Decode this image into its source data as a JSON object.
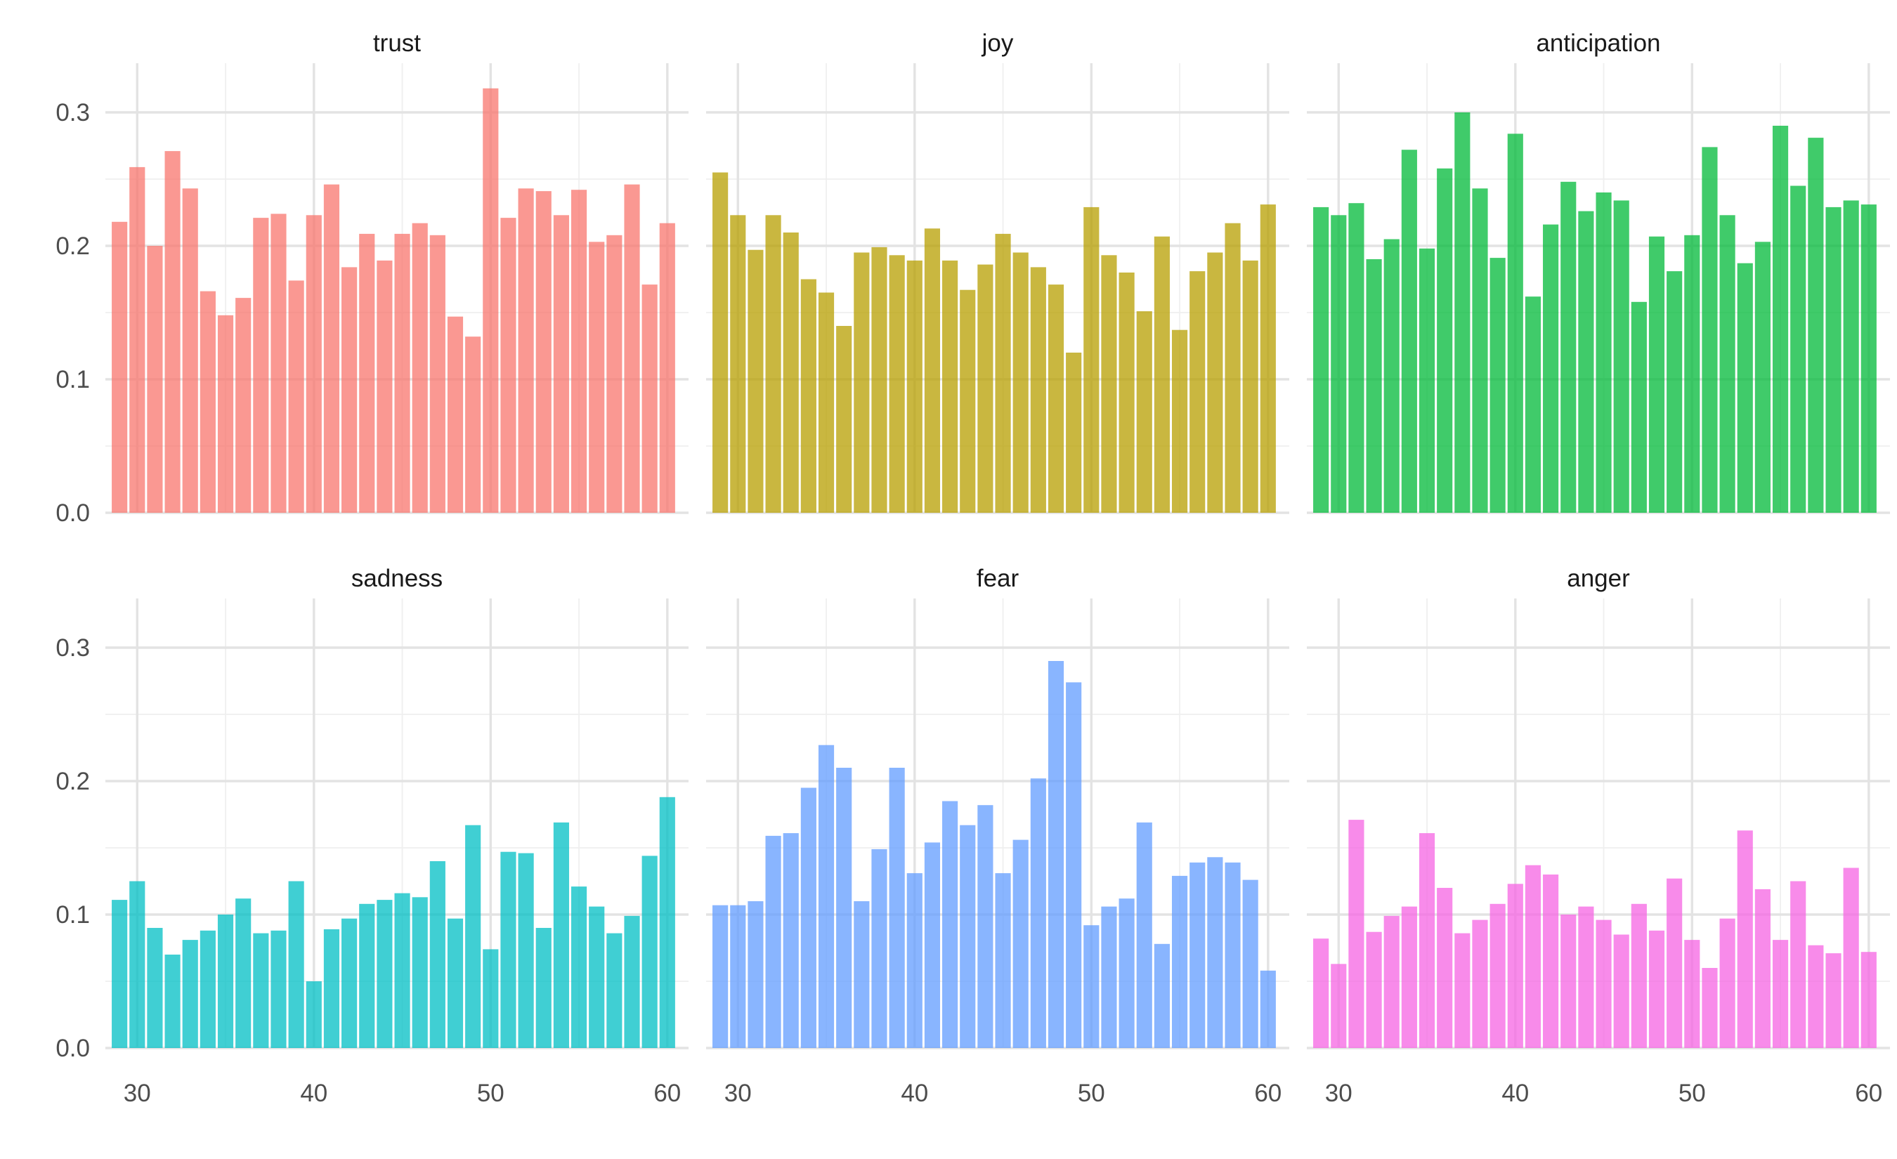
{
  "chart_data": {
    "type": "bar",
    "layout": "facet grid, 2 rows x 3 columns, shared axes",
    "x": [
      29,
      30,
      31,
      32,
      33,
      34,
      35,
      36,
      37,
      38,
      39,
      40,
      41,
      42,
      43,
      44,
      45,
      46,
      47,
      48,
      49,
      50,
      51,
      52,
      53,
      54,
      55,
      56,
      57,
      58,
      59,
      60
    ],
    "xlim": [
      28.2,
      61.2
    ],
    "xticks": [
      30,
      40,
      50,
      60
    ],
    "xtick_labels": [
      "30",
      "40",
      "50",
      "60"
    ],
    "ylim": [
      0,
      0.33
    ],
    "yticks": [
      0,
      0.1,
      0.2,
      0.3
    ],
    "ytick_labels": [
      "0.0",
      "0.1",
      "0.2",
      "0.3"
    ],
    "grid": true,
    "legend": "none",
    "series": [
      {
        "name": "trust",
        "color": "#F8766D",
        "values": [
          0.218,
          0.259,
          0.2,
          0.271,
          0.243,
          0.166,
          0.148,
          0.161,
          0.221,
          0.224,
          0.174,
          0.223,
          0.246,
          0.184,
          0.209,
          0.189,
          0.209,
          0.217,
          0.208,
          0.147,
          0.132,
          0.318,
          0.221,
          0.243,
          0.241,
          0.223,
          0.242,
          0.203,
          0.208,
          0.246,
          0.171,
          0.217
        ]
      },
      {
        "name": "joy",
        "color": "#B79F00",
        "values": [
          0.255,
          0.223,
          0.197,
          0.223,
          0.21,
          0.175,
          0.165,
          0.14,
          0.195,
          0.199,
          0.193,
          0.189,
          0.213,
          0.189,
          0.167,
          0.186,
          0.209,
          0.195,
          0.184,
          0.171,
          0.12,
          0.229,
          0.193,
          0.18,
          0.151,
          0.207,
          0.137,
          0.181,
          0.195,
          0.217,
          0.189,
          0.231
        ]
      },
      {
        "name": "anticipation",
        "color": "#00BA38",
        "values": [
          0.229,
          0.223,
          0.232,
          0.19,
          0.205,
          0.272,
          0.198,
          0.258,
          0.3,
          0.243,
          0.191,
          0.284,
          0.162,
          0.216,
          0.248,
          0.226,
          0.24,
          0.234,
          0.158,
          0.207,
          0.181,
          0.208,
          0.274,
          0.223,
          0.187,
          0.203,
          0.29,
          0.245,
          0.281,
          0.229,
          0.234,
          0.231
        ]
      },
      {
        "name": "sadness",
        "color": "#00BFC4",
        "values": [
          0.111,
          0.125,
          0.09,
          0.07,
          0.081,
          0.088,
          0.1,
          0.112,
          0.086,
          0.088,
          0.125,
          0.05,
          0.089,
          0.097,
          0.108,
          0.111,
          0.116,
          0.113,
          0.14,
          0.097,
          0.167,
          0.074,
          0.147,
          0.146,
          0.09,
          0.169,
          0.121,
          0.106,
          0.086,
          0.099,
          0.144,
          0.188
        ]
      },
      {
        "name": "fear",
        "color": "#619CFF",
        "values": [
          0.107,
          0.107,
          0.11,
          0.159,
          0.161,
          0.195,
          0.227,
          0.21,
          0.11,
          0.149,
          0.21,
          0.131,
          0.154,
          0.185,
          0.167,
          0.182,
          0.131,
          0.156,
          0.202,
          0.29,
          0.274,
          0.092,
          0.106,
          0.112,
          0.169,
          0.078,
          0.129,
          0.139,
          0.143,
          0.139,
          0.126,
          0.058
        ]
      },
      {
        "name": "anger",
        "color": "#F564E3",
        "values": [
          0.082,
          0.063,
          0.171,
          0.087,
          0.099,
          0.106,
          0.161,
          0.12,
          0.086,
          0.096,
          0.108,
          0.123,
          0.137,
          0.13,
          0.1,
          0.106,
          0.096,
          0.085,
          0.108,
          0.088,
          0.127,
          0.081,
          0.06,
          0.097,
          0.163,
          0.119,
          0.081,
          0.125,
          0.077,
          0.071,
          0.135,
          0.072
        ]
      }
    ]
  }
}
